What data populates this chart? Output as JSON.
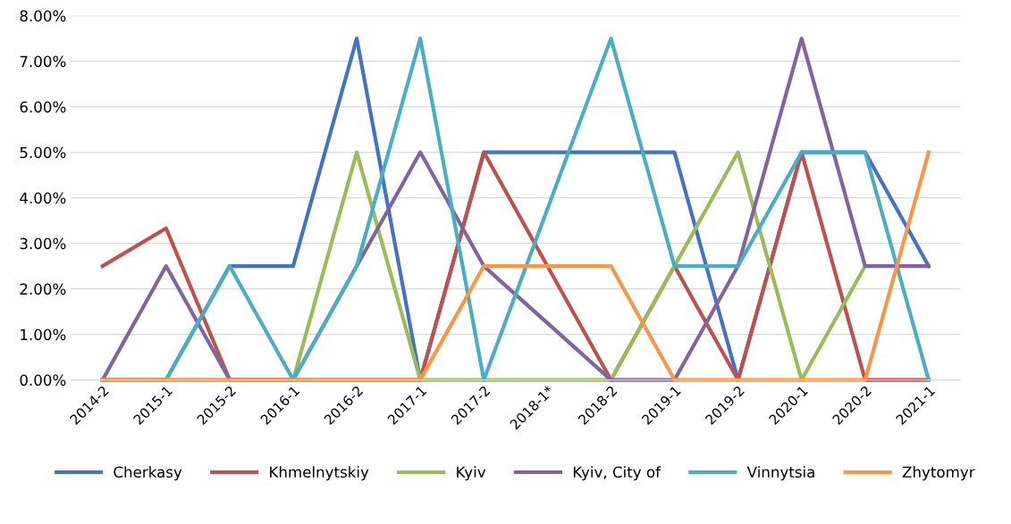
{
  "chart_data": {
    "type": "line",
    "categories": [
      "2014-2",
      "2015-1",
      "2015-2",
      "2016-1",
      "2016-2",
      "2017-1",
      "2017-2",
      "2018-1*",
      "2018-2",
      "2019-1",
      "2019-2",
      "2020-1",
      "2020-2",
      "2021-1"
    ],
    "series": [
      {
        "name": "Cherkasy",
        "color": "#4472c4",
        "values": [
          0,
          0,
          2.5,
          2.5,
          7.5,
          0,
          5,
          5,
          5,
          5,
          0,
          5,
          5,
          2.5
        ]
      },
      {
        "name": "Khmelnytskiy",
        "color": "#c0504d",
        "values": [
          2.5,
          3.33,
          0,
          0,
          0,
          0,
          5,
          2.5,
          0,
          2.5,
          0,
          5,
          0,
          0
        ]
      },
      {
        "name": "Kyiv",
        "color": "#9bbb59",
        "values": [
          0,
          0,
          0,
          0,
          5,
          0,
          0,
          0,
          0,
          2.5,
          5,
          0,
          2.5,
          null
        ]
      },
      {
        "name": "Kyiv, City of",
        "color": "#8064a2",
        "values": [
          0,
          2.5,
          0,
          0,
          2.5,
          5,
          2.5,
          1.25,
          0,
          0,
          2.5,
          7.5,
          2.5,
          2.5
        ]
      },
      {
        "name": "Vinnytsia",
        "color": "#4bacc6",
        "values": [
          0,
          0,
          2.5,
          0,
          2.5,
          7.5,
          0,
          3.75,
          7.5,
          2.5,
          2.5,
          5,
          5,
          0
        ]
      },
      {
        "name": "Zhytomyr",
        "color": "#f79646",
        "values": [
          0,
          0,
          0,
          0,
          0,
          0,
          2.5,
          2.5,
          2.5,
          0,
          0,
          0,
          0,
          5
        ]
      }
    ],
    "ylim": [
      0,
      8
    ],
    "yticks": [
      {
        "value": 0,
        "label": "0.00%"
      },
      {
        "value": 1,
        "label": "1.00%"
      },
      {
        "value": 2,
        "label": "2.00%"
      },
      {
        "value": 3,
        "label": "3.00%"
      },
      {
        "value": 4,
        "label": "4.00%"
      },
      {
        "value": 5,
        "label": "5.00%"
      },
      {
        "value": 6,
        "label": "6.00%"
      },
      {
        "value": 7,
        "label": "7.00%"
      },
      {
        "value": 8,
        "label": "8.00%"
      }
    ],
    "grid": "y",
    "legend": "bottom",
    "marker": "none",
    "line_style": "solid"
  }
}
